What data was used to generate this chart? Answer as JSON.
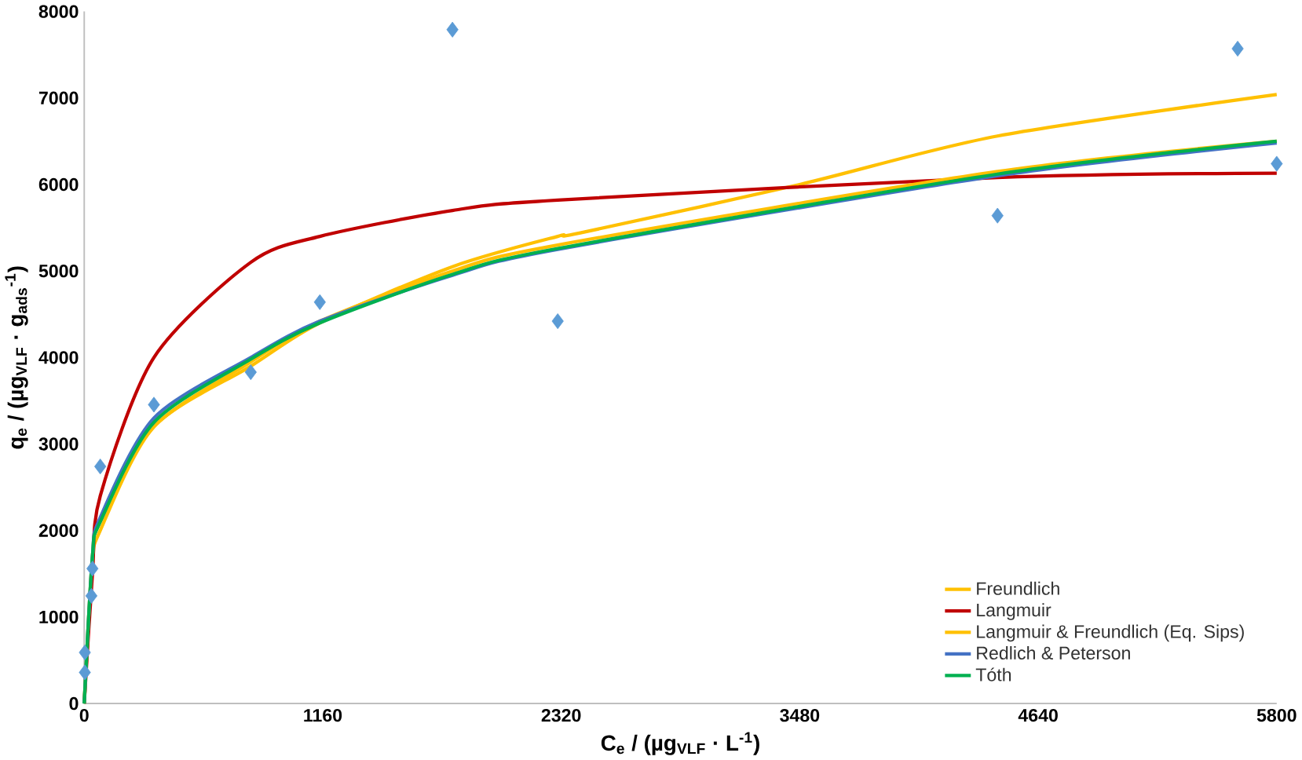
{
  "chart_data": {
    "type": "line",
    "xlabel": "C$_{e}$ / (µg$_{VLF}$ · L$^{-1}$)",
    "ylabel": "q$_{e}$ / (µg$_{VLF}$ · g$_{ads}$$^{-1}$)",
    "xlim": [
      0,
      5800
    ],
    "xticks": [
      0,
      1160,
      2320,
      3480,
      4640,
      5800
    ],
    "ylim": [
      0,
      8000
    ],
    "yticks": [
      0,
      1000,
      2000,
      3000,
      4000,
      5000,
      6000,
      7000,
      8000
    ],
    "grid": false,
    "legend": "bottom right",
    "marker": "none",
    "line_style": "solid",
    "series": [
      {
        "type": "scatter",
        "color": "#5b9bd5",
        "marker": "diamond",
        "x": [
          3,
          3,
          35,
          40,
          78,
          339,
          810,
          1146,
          1791,
          2303,
          4442,
          5610,
          5800
        ],
        "values": [
          360,
          590,
          1245,
          1560,
          2740,
          3455,
          3830,
          4640,
          7790,
          4420,
          5640,
          7570,
          6240
        ]
      },
      {
        "name": "Freundlich",
        "color": "#ffc000",
        "x": [
          0,
          40,
          78,
          339,
          810,
          1146,
          1791,
          2303,
          2413,
          3480,
          4442,
          5800
        ],
        "values": [
          0,
          1600,
          2000,
          3200,
          3900,
          4400,
          5050,
          5400,
          5440,
          6000,
          6560,
          7040
        ]
      },
      {
        "name": "Langmuir",
        "color": "#c00000",
        "x": [
          0,
          40,
          78,
          339,
          810,
          1146,
          1791,
          2303,
          4442,
          5800
        ],
        "values": [
          0,
          1500,
          2400,
          4000,
          5100,
          5400,
          5700,
          5820,
          6080,
          6130
        ]
      },
      {
        "name": "Langmuir & Freundlich (Eq. Sips)",
        "color": "#ffc000",
        "x": [
          0,
          40,
          78,
          339,
          810,
          1146,
          1791,
          2303,
          4442,
          5800
        ],
        "values": [
          0,
          1700,
          2100,
          3200,
          3950,
          4420,
          5000,
          5300,
          6150,
          6500
        ]
      },
      {
        "name": "Redlich & Peterson",
        "color": "#4472c4",
        "x": [
          0,
          40,
          78,
          339,
          810,
          1146,
          1791,
          2303,
          4442,
          5800
        ],
        "values": [
          0,
          1700,
          2150,
          3300,
          4000,
          4420,
          4950,
          5250,
          6100,
          6480
        ]
      },
      {
        "name": "Tóth",
        "color": "#00b050",
        "x": [
          0,
          40,
          78,
          339,
          810,
          1146,
          1791,
          2303,
          4442,
          5800
        ],
        "values": [
          0,
          1700,
          2100,
          3250,
          3980,
          4400,
          4960,
          5260,
          6120,
          6500
        ]
      }
    ]
  }
}
